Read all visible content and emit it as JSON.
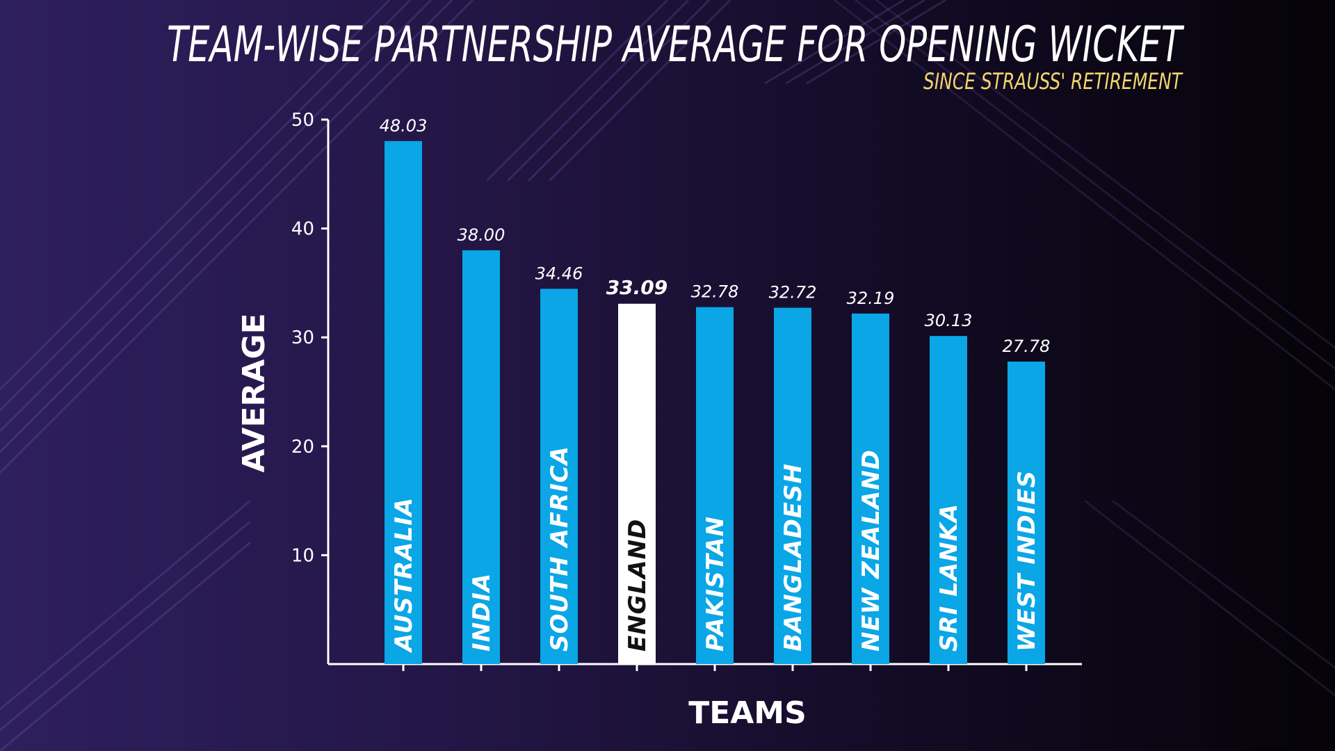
{
  "chart_data": {
    "type": "bar",
    "title": "TEAM-WISE PARTNERSHIP AVERAGE FOR OPENING WICKET",
    "subtitle": "SINCE STRAUSS' RETIREMENT",
    "xlabel": "TEAMS",
    "ylabel": "AVERAGE",
    "categories": [
      "AUSTRALIA",
      "INDIA",
      "SOUTH AFRICA",
      "ENGLAND",
      "PAKISTAN",
      "BANGLADESH",
      "NEW ZEALAND",
      "SRI LANKA",
      "WEST INDIES"
    ],
    "values": [
      48.03,
      38.0,
      34.46,
      33.09,
      32.78,
      32.72,
      32.19,
      30.13,
      27.78
    ],
    "value_labels": [
      "48.03",
      "38.00",
      "34.46",
      "33.09",
      "32.78",
      "32.72",
      "32.19",
      "30.13",
      "27.78"
    ],
    "highlight": "ENGLAND",
    "ylim": [
      0,
      50
    ],
    "yticks": [
      10,
      20,
      30,
      40,
      50
    ],
    "grid": false,
    "colors": {
      "bar": "#0aa6e6",
      "highlight_bar": "#ffffff",
      "subtitle": "#f2d66b",
      "axis": "#ffffff"
    }
  }
}
